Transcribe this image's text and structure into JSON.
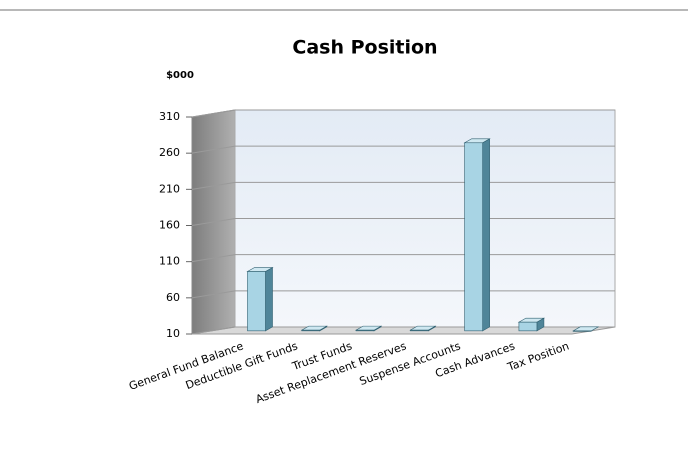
{
  "chart_data": {
    "type": "bar3d",
    "title": "Cash Position",
    "y_axis_label": "$000",
    "categories": [
      "General Fund Balance",
      "Deductible Gift Funds",
      "Trust Funds",
      "Asset Replacement Reserves",
      "Suspense Accounts",
      "Cash Advances",
      "Tax Position"
    ],
    "values": [
      92,
      11,
      11,
      11,
      270,
      22,
      10
    ],
    "color": "#a8d4e4",
    "ylim": [
      10,
      310
    ],
    "yticks": [
      10,
      60,
      110,
      160,
      210,
      260,
      310
    ],
    "grid": true
  }
}
